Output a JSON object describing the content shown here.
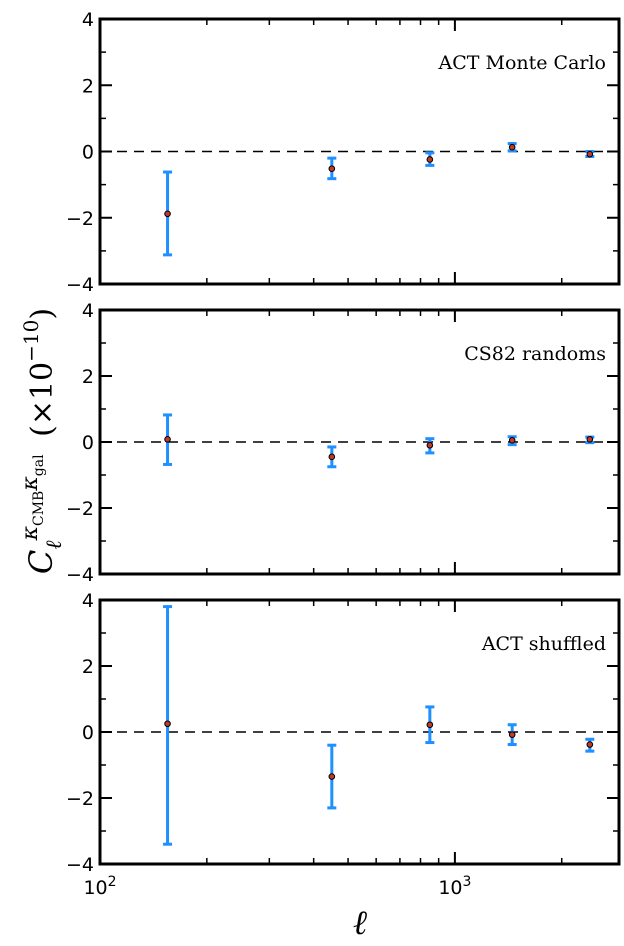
{
  "chart_data": {
    "type": "scatter",
    "x_scale": "log",
    "xlim": [
      100,
      2900
    ],
    "x_major_ticks": [
      100,
      1000
    ],
    "x_tick_labels": [
      {
        "base": "10",
        "exp": "2"
      },
      {
        "base": "10",
        "exp": "3"
      }
    ],
    "xlabel": "ℓ",
    "ylabel": {
      "symbol": "C",
      "sub": "ℓ",
      "sup_k1": "κ",
      "sup_k1_sub": "CMB",
      "sup_k2": "κ",
      "sup_k2_sub": "gal",
      "factor_text": "(×10",
      "factor_exp": "−10",
      "factor_close": ")"
    },
    "reference_line_y": 0,
    "marker_color": "#c0392b",
    "errorbar_color": "#1e90ff",
    "panels": [
      {
        "label": "ACT Monte Carlo",
        "ylim": [
          -4,
          4
        ],
        "y_ticks": [
          -4,
          -2,
          0,
          2,
          4
        ],
        "y_tick_labels": [
          "−4",
          "−2",
          "0",
          "2",
          "4"
        ],
        "points": [
          {
            "x": 155,
            "y": -1.88,
            "yerr_low": -3.12,
            "yerr_high": -0.62
          },
          {
            "x": 450,
            "y": -0.52,
            "yerr_low": -0.82,
            "yerr_high": -0.2
          },
          {
            "x": 850,
            "y": -0.24,
            "yerr_low": -0.42,
            "yerr_high": -0.04
          },
          {
            "x": 1450,
            "y": 0.13,
            "yerr_low": 0.02,
            "yerr_high": 0.24
          },
          {
            "x": 2400,
            "y": -0.08,
            "yerr_low": -0.15,
            "yerr_high": 0.0
          }
        ]
      },
      {
        "label": "CS82 randoms",
        "ylim": [
          -4,
          4
        ],
        "y_ticks": [
          -4,
          -2,
          0,
          2,
          4
        ],
        "y_tick_labels": [
          "−4",
          "−2",
          "0",
          "2",
          "4"
        ],
        "points": [
          {
            "x": 155,
            "y": 0.08,
            "yerr_low": -0.68,
            "yerr_high": 0.82
          },
          {
            "x": 450,
            "y": -0.45,
            "yerr_low": -0.75,
            "yerr_high": -0.15
          },
          {
            "x": 850,
            "y": -0.1,
            "yerr_low": -0.33,
            "yerr_high": 0.1
          },
          {
            "x": 1450,
            "y": 0.05,
            "yerr_low": -0.08,
            "yerr_high": 0.16
          },
          {
            "x": 2400,
            "y": 0.08,
            "yerr_low": -0.02,
            "yerr_high": 0.15
          }
        ]
      },
      {
        "label": "ACT shuffled",
        "ylim": [
          -4,
          4
        ],
        "y_ticks": [
          -4,
          -2,
          0,
          2,
          4
        ],
        "y_tick_labels": [
          "−4",
          "−2",
          "0",
          "2",
          "4"
        ],
        "points": [
          {
            "x": 155,
            "y": 0.25,
            "yerr_low": -3.4,
            "yerr_high": 3.8
          },
          {
            "x": 450,
            "y": -1.35,
            "yerr_low": -2.3,
            "yerr_high": -0.4
          },
          {
            "x": 850,
            "y": 0.22,
            "yerr_low": -0.32,
            "yerr_high": 0.76
          },
          {
            "x": 1450,
            "y": -0.08,
            "yerr_low": -0.38,
            "yerr_high": 0.22
          },
          {
            "x": 2400,
            "y": -0.38,
            "yerr_low": -0.58,
            "yerr_high": -0.22
          }
        ]
      }
    ]
  }
}
